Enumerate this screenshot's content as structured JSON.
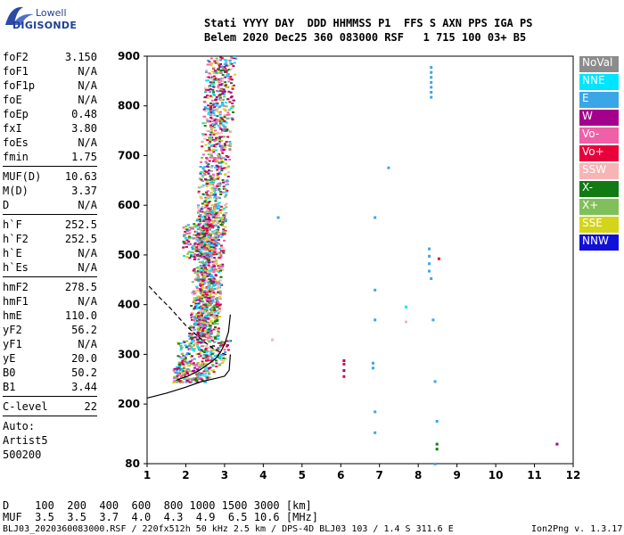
{
  "logo": {
    "line1": "Lowell",
    "line2": "DIGISONDE"
  },
  "header": {
    "line1": "Stati YYYY DAY  DDD HHMMSS P1  FFS S AXN PPS IGA PS",
    "line2": "Belem 2020 Dec25 360 083000 RSF   1 715 100 03+ B5"
  },
  "params": {
    "group1": [
      {
        "label": "foF2",
        "value": "3.150"
      },
      {
        "label": "foF1",
        "value": "N/A"
      },
      {
        "label": "foF1p",
        "value": "N/A"
      },
      {
        "label": "foE",
        "value": "N/A"
      },
      {
        "label": "foEp",
        "value": "0.48"
      },
      {
        "label": "fxI",
        "value": "3.80"
      },
      {
        "label": "foEs",
        "value": "N/A"
      },
      {
        "label": "fmin",
        "value": "1.75"
      }
    ],
    "group2": [
      {
        "label": "MUF(D)",
        "value": "10.63"
      },
      {
        "label": "M(D)",
        "value": "3.37"
      },
      {
        "label": "D",
        "value": "N/A"
      }
    ],
    "group3": [
      {
        "label": "h`F",
        "value": "252.5"
      },
      {
        "label": "h`F2",
        "value": "252.5"
      },
      {
        "label": "h`E",
        "value": "N/A"
      },
      {
        "label": "h`Es",
        "value": "N/A"
      }
    ],
    "group4": [
      {
        "label": "hmF2",
        "value": "278.5"
      },
      {
        "label": "hmF1",
        "value": "N/A"
      },
      {
        "label": "hmE",
        "value": "110.0"
      },
      {
        "label": "yF2",
        "value": "56.2"
      },
      {
        "label": "yF1",
        "value": "N/A"
      },
      {
        "label": "yE",
        "value": "20.0"
      },
      {
        "label": "B0",
        "value": "50.2"
      },
      {
        "label": "B1",
        "value": "3.44"
      }
    ],
    "group5": [
      {
        "label": "C-level",
        "value": "22"
      }
    ],
    "notes": [
      "Auto:",
      "Artist5",
      "500200"
    ]
  },
  "legend": [
    {
      "name": "NoVal",
      "color": "#8c8c8c"
    },
    {
      "name": "NNE",
      "color": "#00e5ff"
    },
    {
      "name": "E",
      "color": "#3aa6e8"
    },
    {
      "name": "W",
      "color": "#a5008c"
    },
    {
      "name": "Vo-",
      "color": "#f060a8"
    },
    {
      "name": "Vo+",
      "color": "#e8003a"
    },
    {
      "name": "SSW",
      "color": "#f8b4b4"
    },
    {
      "name": "X-",
      "color": "#127a12"
    },
    {
      "name": "X+",
      "color": "#7fc05a"
    },
    {
      "name": "SSE",
      "color": "#d4d41a"
    },
    {
      "name": "NNW",
      "color": "#1010d8"
    }
  ],
  "bottom": {
    "dline": "D    100  200  400  600  800 1000 1500 3000 [km]",
    "mline": "MUF  3.5  3.5  3.7  4.0  4.3  4.9  6.5 10.6 [MHz]",
    "footer_left": "BLJ03_2020360083000.RSF / 220fx512h 50 kHz 2.5 km / DPS-4D BLJ03 103 / 1.4 S 311.6 E",
    "footer_right": "Ion2Png v. 1.3.17"
  },
  "chart_data": {
    "type": "scatter",
    "xlim": [
      1,
      12
    ],
    "ylim": [
      80,
      900
    ],
    "xticks": [
      "1",
      "2",
      "3",
      "4",
      "5",
      "6",
      "7",
      "8",
      "9",
      "10",
      "11",
      "12"
    ],
    "yticks": [
      "80",
      "200",
      "300",
      "400",
      "500",
      "600",
      "700",
      "800",
      "900"
    ],
    "series": [
      {
        "name": "E",
        "points": [
          [
            8.3,
            880
          ],
          [
            8.3,
            870
          ],
          [
            8.3,
            860
          ],
          [
            8.3,
            850
          ],
          [
            8.3,
            840
          ],
          [
            8.3,
            830
          ],
          [
            8.3,
            820
          ],
          [
            8.25,
            515
          ],
          [
            8.25,
            500
          ],
          [
            8.25,
            485
          ],
          [
            8.25,
            470
          ],
          [
            8.3,
            455
          ],
          [
            6.85,
            578
          ],
          [
            6.85,
            432
          ],
          [
            6.85,
            372
          ],
          [
            6.8,
            285
          ],
          [
            6.8,
            275
          ],
          [
            6.85,
            187
          ],
          [
            6.85,
            145
          ],
          [
            8.35,
            372
          ],
          [
            8.4,
            248
          ],
          [
            8.45,
            168
          ],
          [
            7.2,
            678
          ],
          [
            4.35,
            578
          ],
          [
            8.4,
            82
          ]
        ]
      },
      {
        "name": "Vo+",
        "points": [
          [
            8.5,
            495
          ],
          [
            6.05,
            283
          ],
          [
            6.05,
            258
          ]
        ]
      },
      {
        "name": "W",
        "points": [
          [
            6.05,
            290
          ],
          [
            6.05,
            270
          ],
          [
            11.55,
            122
          ]
        ]
      },
      {
        "name": "X-",
        "points": [
          [
            8.45,
            122
          ],
          [
            8.45,
            112
          ]
        ]
      },
      {
        "name": "SSW",
        "points": [
          [
            4.2,
            332
          ],
          [
            7.65,
            368
          ]
        ]
      },
      {
        "name": "NNE",
        "points": [
          [
            7.65,
            398
          ]
        ]
      }
    ],
    "o_trace": {
      "x": [
        1.75,
        1.9,
        2.05,
        2.2,
        2.35,
        2.5,
        2.65,
        2.8,
        2.9,
        3.0,
        3.1,
        3.15
      ],
      "y": [
        248,
        252,
        256,
        262,
        268,
        276,
        284,
        294,
        305,
        320,
        345,
        380
      ]
    },
    "curve_solid": {
      "x": [
        1,
        1.5,
        2.0,
        2.4,
        2.8,
        3.0,
        3.12,
        3.15
      ],
      "y": [
        212,
        222,
        234,
        245,
        252,
        256,
        268,
        300
      ]
    },
    "curve_dashed": {
      "x": [
        1.05,
        1.3,
        1.6,
        2.0,
        2.4,
        2.7,
        2.95,
        3.1
      ],
      "y": [
        437,
        416,
        393,
        358,
        330,
        312,
        302,
        298
      ]
    }
  }
}
